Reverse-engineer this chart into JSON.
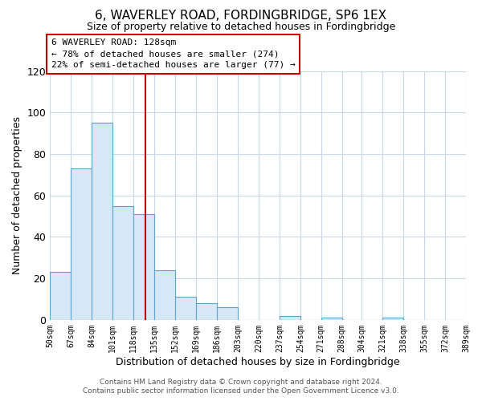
{
  "title": "6, WAVERLEY ROAD, FORDINGBRIDGE, SP6 1EX",
  "subtitle": "Size of property relative to detached houses in Fordingbridge",
  "xlabel": "Distribution of detached houses by size in Fordingbridge",
  "ylabel": "Number of detached properties",
  "bins": [
    50,
    67,
    84,
    101,
    118,
    135,
    152,
    169,
    186,
    203,
    220,
    237,
    254,
    271,
    288,
    304,
    321,
    338,
    355,
    372,
    389
  ],
  "counts": [
    23,
    73,
    95,
    55,
    51,
    24,
    11,
    8,
    6,
    0,
    0,
    2,
    0,
    1,
    0,
    0,
    1,
    0,
    0,
    0
  ],
  "bar_fill": "#d6e8f5",
  "bar_edge": "#5ba3d0",
  "vline_x": 128,
  "vline_color": "#cc0000",
  "ylim": [
    0,
    120
  ],
  "yticks": [
    0,
    20,
    40,
    60,
    80,
    100,
    120
  ],
  "annotation_line1": "6 WAVERLEY ROAD: 128sqm",
  "annotation_line2": "← 78% of detached houses are smaller (274)",
  "annotation_line3": "22% of semi-detached houses are larger (77) →",
  "annotation_box_color": "#cc0000",
  "footer_line1": "Contains HM Land Registry data © Crown copyright and database right 2024.",
  "footer_line2": "Contains public sector information licensed under the Open Government Licence v3.0.",
  "background_color": "#ffffff",
  "grid_color": "#c8d8e8",
  "title_fontsize": 11,
  "subtitle_fontsize": 9,
  "ylabel_fontsize": 9,
  "xlabel_fontsize": 9,
  "tick_fontsize": 7,
  "annotation_fontsize": 8,
  "footer_fontsize": 6.5
}
